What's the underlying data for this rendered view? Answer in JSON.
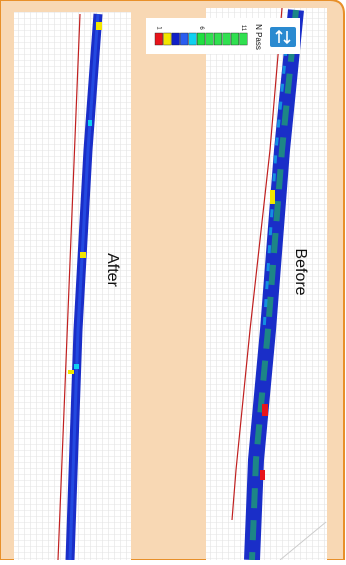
{
  "panels": [
    {
      "label": "After"
    },
    {
      "label": "Before"
    }
  ],
  "legend": {
    "title": "N Pass",
    "ticks": [
      "1",
      "6",
      "11"
    ],
    "colors": [
      "#e8141c",
      "#f2e600",
      "#1020c8",
      "#2a5cf0",
      "#10d0f0",
      "#20e040",
      "#30e050",
      "#30e050",
      "#30e050",
      "#30e050",
      "#30e050"
    ]
  }
}
